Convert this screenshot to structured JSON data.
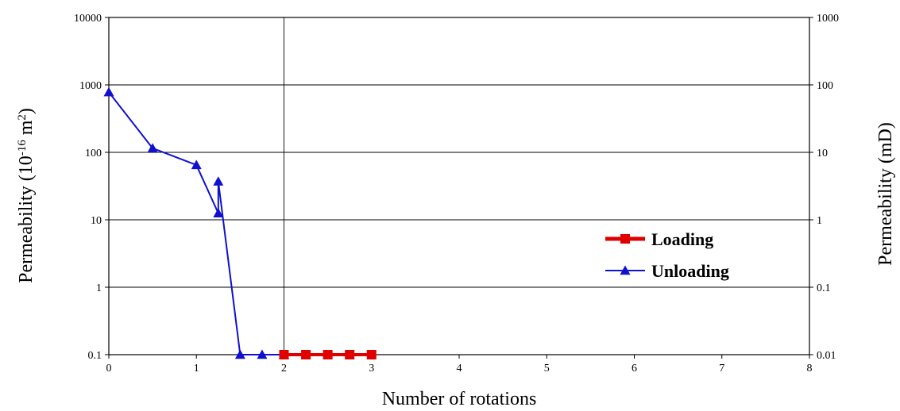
{
  "chart_data": {
    "type": "line",
    "xlabel": "Number of rotations",
    "ylabel": "Permeability (10",
    "ylabel_exp": "-16",
    "ylabel_unit": " m",
    "ylabel_unit_exp": "2",
    "ylabel_close": ")",
    "y2label": "Permeability (mD)",
    "xlim": [
      0,
      8
    ],
    "x_ticks": [
      0,
      1,
      2,
      3,
      4,
      5,
      6,
      7,
      8
    ],
    "ylim": [
      0.1,
      10000
    ],
    "y_scale": "log",
    "y_ticks": [
      0.1,
      1,
      10,
      100,
      1000,
      10000
    ],
    "y_tick_labels": [
      "0.1",
      "1",
      "10",
      "100",
      "1000",
      "10000"
    ],
    "y2lim": [
      0.01,
      1000
    ],
    "y2_ticks": [
      0.01,
      0.1,
      1,
      10,
      100,
      1000
    ],
    "y2_tick_labels": [
      "0.01",
      "0.1",
      "1",
      "10",
      "100",
      "1000"
    ],
    "grid": "horizontal lines at decades, vertical line at x=2",
    "legend_position": "middle-right",
    "series": [
      {
        "name": "Loading",
        "color": "#e00000",
        "marker": "square",
        "points": [
          [
            2,
            0.1
          ],
          [
            2.25,
            0.1
          ],
          [
            2.5,
            0.1
          ],
          [
            2.75,
            0.1
          ],
          [
            3,
            0.1
          ]
        ]
      },
      {
        "name": "Unloading",
        "color": "#1010d0",
        "marker": "triangle",
        "points": [
          [
            0,
            780
          ],
          [
            0.5,
            115
          ],
          [
            1,
            65
          ],
          [
            1.25,
            12.5
          ],
          [
            1.25,
            37
          ],
          [
            1.5,
            0.1
          ],
          [
            1.75,
            0.1
          ],
          [
            2,
            0.1
          ]
        ]
      }
    ]
  }
}
